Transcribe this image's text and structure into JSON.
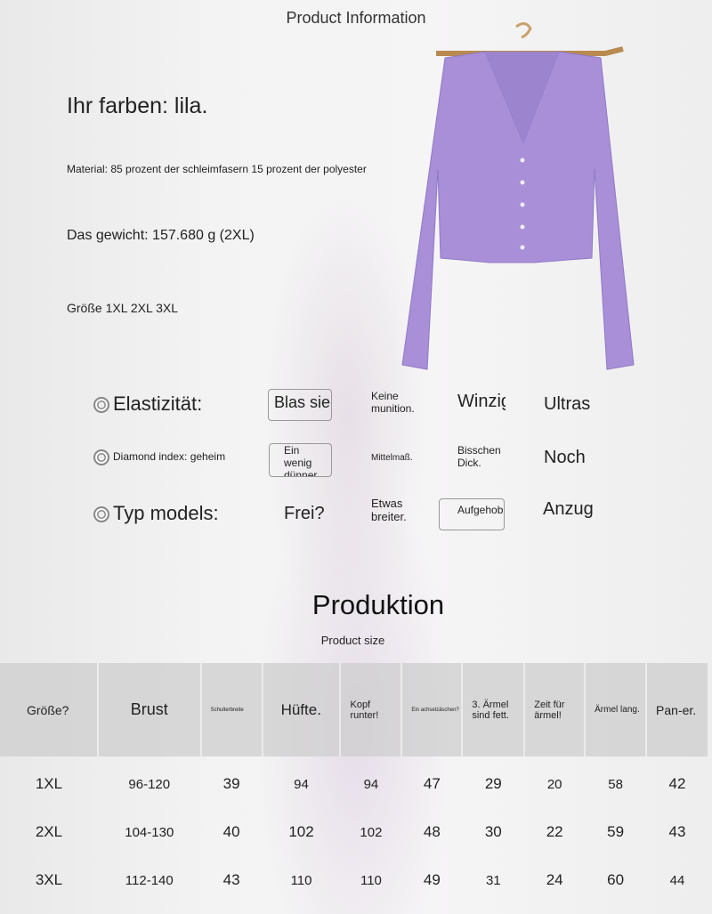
{
  "header": {
    "title": "Product Information"
  },
  "info": {
    "color": "Ihr farben: lila.",
    "material": "Material: 85 prozent der schleimfasern 15 prozent der polyester",
    "weight": "Das gewicht: 157.680 g (2XL)",
    "sizes": "Größe 1XL 2XL 3XL"
  },
  "product_color": "#a88fd8",
  "attributes": [
    {
      "label": "Elastizität:",
      "options": [
        "Blas sie",
        "Keine munition.",
        "Winzig",
        "Ultras"
      ]
    },
    {
      "label": "Diamond index: geheim",
      "options": [
        "Ein wenig dünner.",
        "Mittelmaß.",
        "Bisschen Dick.",
        "Noch"
      ]
    },
    {
      "label": "Typ models:",
      "options": [
        "Frei?",
        "Etwas breiter.",
        "Aufgehob",
        "Anzug"
      ]
    }
  ],
  "production": {
    "title": "Produktion",
    "subtitle": "Product size"
  },
  "table": {
    "headers": [
      "Größe?",
      "Brust",
      "Schulterbreite",
      "Hüfte.",
      "Kopf runter!",
      "Ein achselzäschen?",
      "3. Ärmel sind fett.",
      "Zeit für ärmel!",
      "Ärmel lang.",
      "Pan-er."
    ],
    "rows": [
      [
        "1XL",
        "96-120",
        "39",
        "94",
        "94",
        "47",
        "29",
        "20",
        "58",
        "42"
      ],
      [
        "2XL",
        "104-130",
        "40",
        "102",
        "102",
        "48",
        "30",
        "22",
        "59",
        "43"
      ],
      [
        "3XL",
        "112-140",
        "43",
        "110",
        "110",
        "49",
        "31",
        "24",
        "60",
        "44"
      ]
    ]
  }
}
